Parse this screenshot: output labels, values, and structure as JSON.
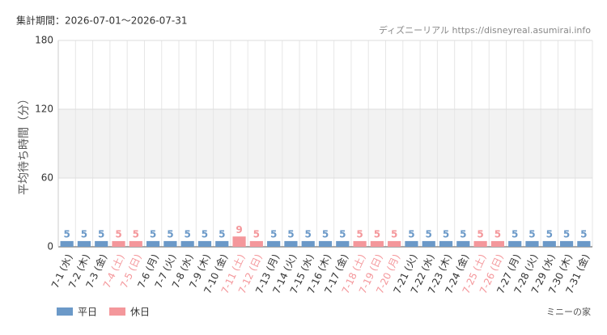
{
  "header": {
    "period": "集計期間：2026-07-01～2026-07-31",
    "source": "ディズニーリアル https://disneyreal.asumirai.info",
    "footer": "ミニーの家"
  },
  "chart_data": {
    "type": "bar",
    "y_label": "平均待ち時間（分）",
    "categories": [
      "7-1 (水)",
      "7-2 (木)",
      "7-3 (金)",
      "7-4 (土)",
      "7-5 (日)",
      "7-6 (月)",
      "7-7 (火)",
      "7-8 (水)",
      "7-9 (木)",
      "7-10 (金)",
      "7-11 (土)",
      "7-12 (日)",
      "7-13 (月)",
      "7-14 (火)",
      "7-15 (水)",
      "7-16 (木)",
      "7-17 (金)",
      "7-18 (土)",
      "7-19 (日)",
      "7-20 (月)",
      "7-21 (火)",
      "7-22 (水)",
      "7-23 (木)",
      "7-24 (金)",
      "7-25 (土)",
      "7-26 (日)",
      "7-27 (月)",
      "7-28 (火)",
      "7-29 (水)",
      "7-30 (木)",
      "7-31 (金)"
    ],
    "series": [
      {
        "name": "平日",
        "color": "#6b99c8",
        "values": [
          5,
          5,
          5,
          null,
          null,
          5,
          5,
          5,
          5,
          5,
          null,
          null,
          5,
          5,
          5,
          5,
          5,
          null,
          null,
          null,
          5,
          5,
          5,
          5,
          null,
          null,
          5,
          5,
          5,
          5,
          5
        ]
      },
      {
        "name": "休日",
        "color": "#f4979b",
        "values": [
          null,
          null,
          null,
          5,
          5,
          null,
          null,
          null,
          null,
          null,
          9,
          5,
          null,
          null,
          null,
          null,
          null,
          5,
          5,
          5,
          null,
          null,
          null,
          null,
          5,
          5,
          null,
          null,
          null,
          null,
          null
        ]
      }
    ],
    "ylim": [
      0,
      180
    ],
    "yticks": [
      0,
      60,
      120,
      180
    ],
    "shaded_range": [
      60,
      120
    ],
    "grid": true,
    "legend": "bottom-left"
  }
}
